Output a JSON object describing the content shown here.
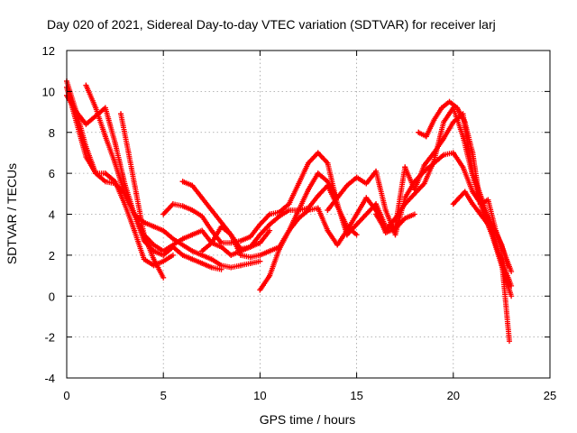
{
  "chart_data": {
    "type": "scatter",
    "title": "Day 020 of 2021, Sidereal Day-to-day VTEC variation (SDTVAR) for receiver larj",
    "xlabel": "GPS time / hours",
    "ylabel": "SDTVAR / TECUs",
    "xlim": [
      0,
      25
    ],
    "ylim": [
      -4,
      12
    ],
    "x_ticks": [
      0,
      5,
      10,
      15,
      20,
      25
    ],
    "y_ticks": [
      -4,
      -2,
      0,
      2,
      4,
      6,
      8,
      10,
      12
    ],
    "grid": true,
    "legend": "none",
    "marker": "plus",
    "color": "#ff0000",
    "series": [
      {
        "x": [
          0,
          0.5,
          1,
          1.5,
          2.0,
          2.5,
          3.0,
          3.5,
          4.0,
          4.5,
          5.0,
          5.5,
          6.0,
          6.5,
          7.0,
          7.5,
          8.0
        ],
        "y": [
          10.5,
          9.0,
          8.4,
          8.8,
          9.2,
          7.5,
          5.5,
          4.0,
          2.7,
          2.2,
          2.0,
          2.4,
          2.0,
          1.8,
          1.6,
          1.4,
          1.3
        ]
      },
      {
        "x": [
          0,
          0.5,
          1.0,
          1.5,
          2.0,
          2.5,
          3.0,
          3.5,
          4.0,
          4.5,
          5.0,
          5.5
        ],
        "y": [
          10.2,
          8.5,
          6.8,
          6.0,
          6.0,
          5.6,
          4.5,
          3.2,
          1.8,
          1.5,
          1.7,
          2.0
        ]
      },
      {
        "x": [
          0,
          0.5,
          1.0,
          1.5,
          2.0,
          2.5,
          3.0,
          3.5,
          4.0,
          4.5,
          5.0
        ],
        "y": [
          9.8,
          9.0,
          7.3,
          6.0,
          5.6,
          5.5,
          5.0,
          4.0,
          3.0,
          1.8,
          0.9
        ]
      },
      {
        "x": [
          1.0,
          1.5,
          2.0,
          2.5,
          3.0,
          3.5,
          4.0,
          4.5,
          5.0,
          5.5,
          6.0,
          6.5,
          7.0,
          7.5,
          8.0,
          8.5,
          9.0,
          9.5,
          10.0
        ],
        "y": [
          10.3,
          9.2,
          7.8,
          6.5,
          5.0,
          4.0,
          3.6,
          3.4,
          3.2,
          2.8,
          2.5,
          2.2,
          2.0,
          1.8,
          1.5,
          1.4,
          1.5,
          1.6,
          1.7
        ]
      },
      {
        "x": [
          2.8,
          3.2,
          3.6,
          4.0,
          4.5,
          5.0,
          5.5,
          6.0,
          6.5,
          7.0,
          7.5,
          8.0,
          8.5,
          9.0,
          9.5,
          10.0,
          10.5
        ],
        "y": [
          8.9,
          7.0,
          5.0,
          3.0,
          2.5,
          2.2,
          2.5,
          2.8,
          3.0,
          3.2,
          2.6,
          2.4,
          2.0,
          2.2,
          2.4,
          2.6,
          3.2
        ]
      },
      {
        "x": [
          5.0,
          5.5,
          6.0,
          6.5,
          7.0,
          7.5,
          8.0,
          8.5,
          9.0,
          9.5,
          10.0,
          10.5,
          11.0,
          11.5,
          12.0,
          12.5,
          13.0,
          13.5,
          14.0,
          14.5
        ],
        "y": [
          4.0,
          4.5,
          4.4,
          4.2,
          3.9,
          3.2,
          2.6,
          2.6,
          2.7,
          2.9,
          3.5,
          4.0,
          4.1,
          4.5,
          5.5,
          6.5,
          7.0,
          6.5,
          4.5,
          3.0
        ]
      },
      {
        "x": [
          6.0,
          6.5,
          7.0,
          7.5,
          8.0,
          8.5,
          9.0,
          9.5,
          10.0,
          10.5,
          11.0,
          11.5,
          12.0,
          12.5,
          13.0,
          13.5,
          14.0,
          14.5,
          15.0
        ],
        "y": [
          5.6,
          5.4,
          4.8,
          4.2,
          3.6,
          3.0,
          2.3,
          2.4,
          3.0,
          3.5,
          3.9,
          4.2,
          4.2,
          4.3,
          4.9,
          5.4,
          4.4,
          3.4,
          3.0
        ]
      },
      {
        "x": [
          7.0,
          7.5,
          8.0,
          8.5,
          9.0,
          9.5,
          10.0,
          10.5,
          11.0,
          11.5,
          12.0,
          12.5,
          13.0,
          13.5,
          14.0
        ],
        "y": [
          2.2,
          2.6,
          3.4,
          3.0,
          2.0,
          1.9,
          2.0,
          2.2,
          2.4,
          3.2,
          4.2,
          5.2,
          6.0,
          5.6,
          4.8
        ]
      },
      {
        "x": [
          10.0,
          10.5,
          11.0,
          11.5,
          12.0,
          12.5,
          13.0,
          13.5,
          14.0,
          14.5,
          15.0,
          15.5,
          16.0,
          16.5,
          17.0,
          17.5,
          18.0
        ],
        "y": [
          0.3,
          1.0,
          2.3,
          3.2,
          3.8,
          4.2,
          4.3,
          3.2,
          2.5,
          3.2,
          4.0,
          4.8,
          4.2,
          3.1,
          3.3,
          3.8,
          4.0
        ]
      },
      {
        "x": [
          13.5,
          14.0,
          14.5,
          15.0,
          15.5,
          16.0,
          16.5,
          17.0,
          17.5,
          18.0,
          18.5,
          19.0,
          19.5,
          20.0,
          20.5,
          21.0,
          21.5,
          22.0,
          22.5,
          22.8
        ],
        "y": [
          4.2,
          4.8,
          5.4,
          5.8,
          5.5,
          6.1,
          4.2,
          3.0,
          4.8,
          5.6,
          6.1,
          6.5,
          6.9,
          7.0,
          6.3,
          5.1,
          4.4,
          3.5,
          2.5,
          1.5
        ]
      },
      {
        "x": [
          14.5,
          15.0,
          15.5,
          16.0,
          16.5,
          17.0,
          17.5,
          18.0,
          18.5,
          19.0,
          19.5,
          20.0,
          20.5,
          21.0,
          21.5,
          22.0,
          22.5,
          22.9
        ],
        "y": [
          3.0,
          3.5,
          4.0,
          4.5,
          3.4,
          3.4,
          6.3,
          5.2,
          6.4,
          7.0,
          7.7,
          8.5,
          8.9,
          6.0,
          4.7,
          3.2,
          1.8,
          -2.2
        ]
      },
      {
        "x": [
          16.0,
          16.5,
          17.0,
          17.5,
          18.0,
          18.5,
          19.0,
          19.5,
          20.0,
          20.5,
          21.0,
          21.5,
          22.0,
          22.5,
          23.0
        ],
        "y": [
          4.0,
          3.2,
          3.8,
          4.5,
          5.0,
          5.5,
          6.6,
          8.5,
          9.2,
          7.8,
          5.9,
          4.2,
          3.0,
          1.5,
          0.0
        ]
      },
      {
        "x": [
          18.2,
          18.6,
          19.0,
          19.4,
          19.8,
          20.2,
          20.6,
          21.0,
          21.4,
          21.8,
          22.2,
          22.6,
          23.0
        ],
        "y": [
          8.0,
          7.8,
          8.6,
          9.2,
          9.5,
          9.2,
          8.5,
          7.0,
          4.5,
          4.7,
          3.2,
          2.2,
          1.2
        ]
      },
      {
        "x": [
          20.0,
          20.3,
          20.6,
          21.0,
          21.4,
          21.8,
          22.2,
          22.6,
          23.0
        ],
        "y": [
          4.5,
          4.8,
          5.1,
          4.5,
          4.0,
          3.5,
          2.5,
          1.5,
          0.5
        ]
      }
    ]
  }
}
